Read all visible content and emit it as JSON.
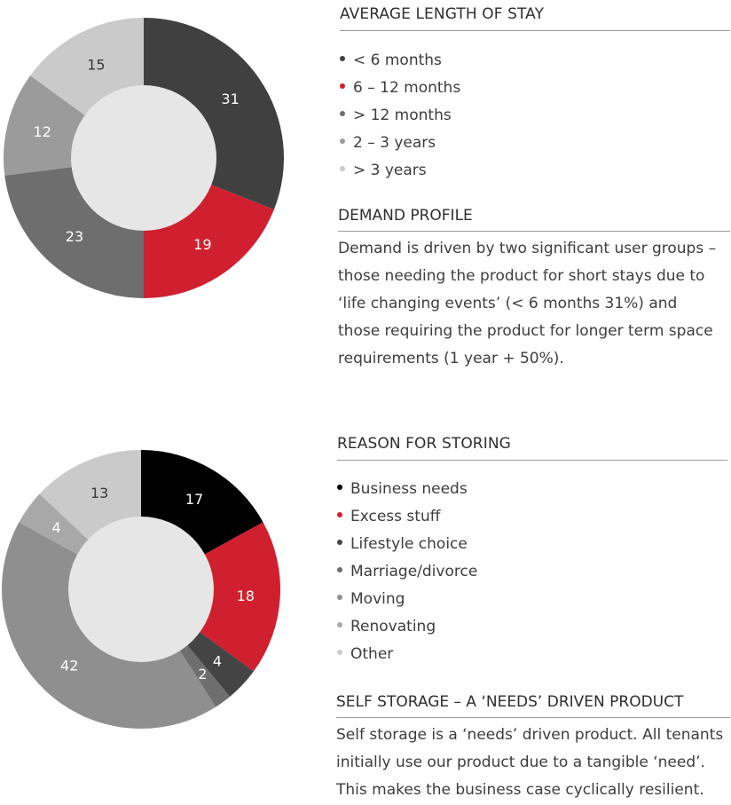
{
  "chart_data": [
    {
      "type": "pie",
      "title": "AVERAGE LENGTH OF STAY",
      "categories": [
        "< 6 months",
        "6 – 12 months",
        "> 12 months",
        "2 – 3 years",
        "> 3 years"
      ],
      "values": [
        31,
        19,
        23,
        12,
        15
      ],
      "colors": [
        "#404040",
        "#d0202f",
        "#6e6e6e",
        "#9b9b9b",
        "#cacaca"
      ],
      "label_colors": [
        "#ffffff",
        "#ffffff",
        "#ffffff",
        "#ffffff",
        "#3a3a3a"
      ],
      "donut": true,
      "legend_position": "right"
    },
    {
      "type": "pie",
      "title": "REASON FOR STORING",
      "categories": [
        "Business needs",
        "Excess stuff",
        "Lifestyle choice",
        "Marriage/divorce",
        "Moving",
        "Renovating",
        "Other"
      ],
      "values": [
        17,
        18,
        4,
        2,
        42,
        4,
        13
      ],
      "colors": [
        "#000000",
        "#d0202f",
        "#444444",
        "#6e6e6e",
        "#8f8f8f",
        "#a8a8a8",
        "#cacaca"
      ],
      "label_colors": [
        "#ffffff",
        "#ffffff",
        "#ffffff",
        "#ffffff",
        "#ffffff",
        "#ffffff",
        "#3a3a3a"
      ],
      "donut": true,
      "legend_position": "right"
    }
  ],
  "demand_profile": {
    "heading": "DEMAND PROFILE",
    "lines": [
      "Demand is driven by two significant user groups –",
      "those needing the product for short stays due to",
      "‘life changing events’ (< 6 months 31%) and",
      "those requiring the product for longer term space",
      "requirements (1 year + 50%)."
    ]
  },
  "self_storage": {
    "heading": "SELF STORAGE – A ‘NEEDS’ DRIVEN PRODUCT",
    "lines": [
      "Self storage is a ‘needs’ driven product. All tenants",
      "initially use our product due to a tangible ‘need’.",
      "This makes the business case cyclically resilient."
    ]
  }
}
